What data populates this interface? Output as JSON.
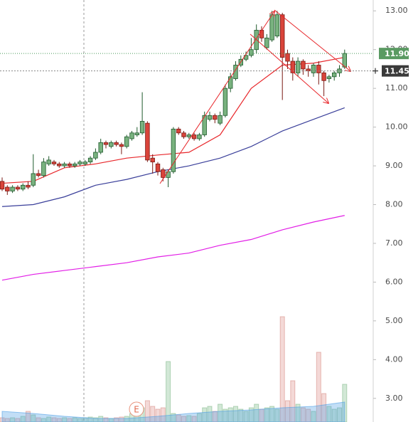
{
  "chart_data": {
    "type": "candlestick",
    "ylim": [
      2.39,
      13.28
    ],
    "yticks": [
      {
        "value": 3,
        "label": "3.00"
      },
      {
        "value": 4,
        "label": "4.00"
      },
      {
        "value": 5,
        "label": "5.00"
      },
      {
        "value": 6,
        "label": "6.00"
      },
      {
        "value": 7,
        "label": "7.00"
      },
      {
        "value": 8,
        "label": "8.00"
      },
      {
        "value": 9,
        "label": "9.00"
      },
      {
        "value": 10,
        "label": "10.00"
      },
      {
        "value": 11,
        "label": "11.00"
      },
      {
        "value": 12,
        "label": "12.00"
      },
      {
        "value": 13,
        "label": "13.00"
      }
    ],
    "open": [
      8.6,
      8.45,
      8.35,
      8.45,
      8.4,
      8.5,
      8.5,
      8.8,
      8.75,
      9.05,
      9.1,
      9.05,
      9.0,
      9.05,
      9.0,
      9.05,
      9.05,
      9.1,
      9.2,
      9.35,
      9.6,
      9.5,
      9.6,
      9.55,
      9.5,
      9.7,
      9.8,
      9.85,
      10.1,
      9.2,
      9.05,
      8.9,
      8.7,
      8.85,
      9.95,
      9.85,
      9.75,
      9.8,
      9.7,
      9.8,
      10.2,
      10.3,
      10.1,
      10.3,
      11.0,
      11.25,
      11.6,
      11.75,
      11.85,
      12.0,
      12.5,
      12.05,
      12.25,
      12.35,
      12.9,
      11.9,
      11.7,
      11.4,
      11.7,
      11.5,
      11.4,
      11.6,
      11.4,
      11.25,
      11.3,
      11.4,
      11.55
    ],
    "high": [
      8.7,
      8.5,
      8.5,
      8.5,
      8.55,
      8.6,
      9.3,
      8.9,
      9.2,
      9.25,
      9.15,
      9.1,
      9.1,
      9.1,
      9.1,
      9.15,
      9.15,
      9.25,
      9.45,
      9.7,
      9.65,
      9.65,
      9.65,
      9.6,
      9.8,
      9.9,
      10.0,
      10.9,
      10.15,
      9.3,
      9.1,
      8.95,
      8.9,
      10.0,
      10.0,
      9.9,
      9.85,
      9.85,
      9.85,
      10.4,
      10.4,
      10.35,
      10.4,
      11.1,
      11.4,
      11.7,
      11.85,
      11.95,
      12.3,
      12.65,
      12.6,
      12.4,
      13.0,
      13.0,
      12.95,
      12.0,
      11.8,
      11.8,
      11.75,
      11.6,
      11.65,
      11.7,
      11.45,
      11.35,
      11.45,
      11.6,
      12.0
    ],
    "low": [
      8.35,
      8.25,
      8.3,
      8.35,
      8.35,
      8.4,
      8.45,
      8.7,
      8.7,
      9.0,
      9.0,
      8.95,
      8.95,
      8.95,
      8.95,
      9.0,
      9.0,
      9.05,
      9.15,
      9.3,
      9.45,
      9.45,
      9.5,
      9.3,
      9.45,
      9.65,
      9.75,
      9.8,
      9.1,
      8.8,
      8.75,
      8.6,
      8.45,
      8.8,
      9.8,
      9.7,
      9.7,
      9.65,
      9.65,
      9.75,
      10.15,
      10.1,
      10.05,
      10.25,
      10.9,
      11.2,
      11.55,
      11.7,
      11.8,
      11.9,
      12.2,
      12.0,
      12.2,
      12.3,
      10.7,
      11.5,
      11.2,
      11.3,
      11.35,
      11.3,
      11.3,
      11.1,
      10.8,
      11.15,
      11.2,
      11.3,
      11.5
    ],
    "close": [
      8.4,
      8.35,
      8.45,
      8.4,
      8.5,
      8.45,
      8.8,
      8.75,
      9.1,
      9.15,
      9.05,
      9.0,
      9.05,
      9.0,
      9.05,
      9.1,
      9.1,
      9.2,
      9.35,
      9.6,
      9.55,
      9.6,
      9.55,
      9.5,
      9.75,
      9.85,
      9.85,
      10.15,
      9.15,
      9.1,
      8.85,
      8.7,
      8.85,
      9.95,
      9.85,
      9.75,
      9.8,
      9.7,
      9.8,
      10.3,
      10.3,
      10.2,
      10.3,
      11.0,
      11.3,
      11.6,
      11.75,
      11.85,
      12.0,
      12.5,
      12.3,
      12.3,
      12.9,
      12.9,
      11.8,
      11.7,
      11.4,
      11.7,
      11.5,
      11.45,
      11.6,
      11.4,
      11.2,
      11.3,
      11.4,
      11.5,
      11.9
    ],
    "volume": [
      6,
      5,
      6,
      5,
      8,
      15,
      10,
      6,
      5,
      7,
      6,
      5,
      6,
      5,
      6,
      5,
      6,
      7,
      6,
      8,
      6,
      5,
      6,
      7,
      8,
      12,
      25,
      20,
      30,
      22,
      18,
      20,
      85,
      12,
      10,
      8,
      9,
      8,
      12,
      20,
      22,
      15,
      25,
      18,
      20,
      22,
      18,
      15,
      20,
      25,
      18,
      20,
      22,
      18,
      148,
      30,
      58,
      25,
      20,
      18,
      15,
      98,
      40,
      22,
      18,
      20,
      53
    ],
    "ma_x": [
      0,
      6,
      12,
      18,
      24,
      30,
      36,
      42,
      48,
      54,
      60,
      66
    ],
    "series": [
      {
        "color": "#e8272b",
        "values": [
          8.55,
          8.6,
          8.95,
          9.05,
          9.2,
          9.28,
          9.35,
          9.8,
          11.0,
          11.6,
          11.65,
          11.8
        ]
      },
      {
        "color": "#3a3f9a",
        "values": [
          7.95,
          8.0,
          8.2,
          8.5,
          8.65,
          8.85,
          9.0,
          9.2,
          9.5,
          9.9,
          10.2,
          10.5
        ]
      },
      {
        "color": "#e21ee6",
        "values": [
          6.05,
          6.2,
          6.3,
          6.4,
          6.5,
          6.65,
          6.75,
          6.95,
          7.1,
          7.35,
          7.55,
          7.72
        ]
      }
    ],
    "volume_ma": [
      15,
      12,
      8,
      5,
      5,
      8,
      12,
      15,
      17,
      20,
      22,
      28
    ],
    "last_price": {
      "value": 11.9,
      "label": "11.90"
    },
    "crosshair_price": {
      "value": 11.45,
      "label": "11.45"
    },
    "annotations": [
      "E"
    ]
  }
}
